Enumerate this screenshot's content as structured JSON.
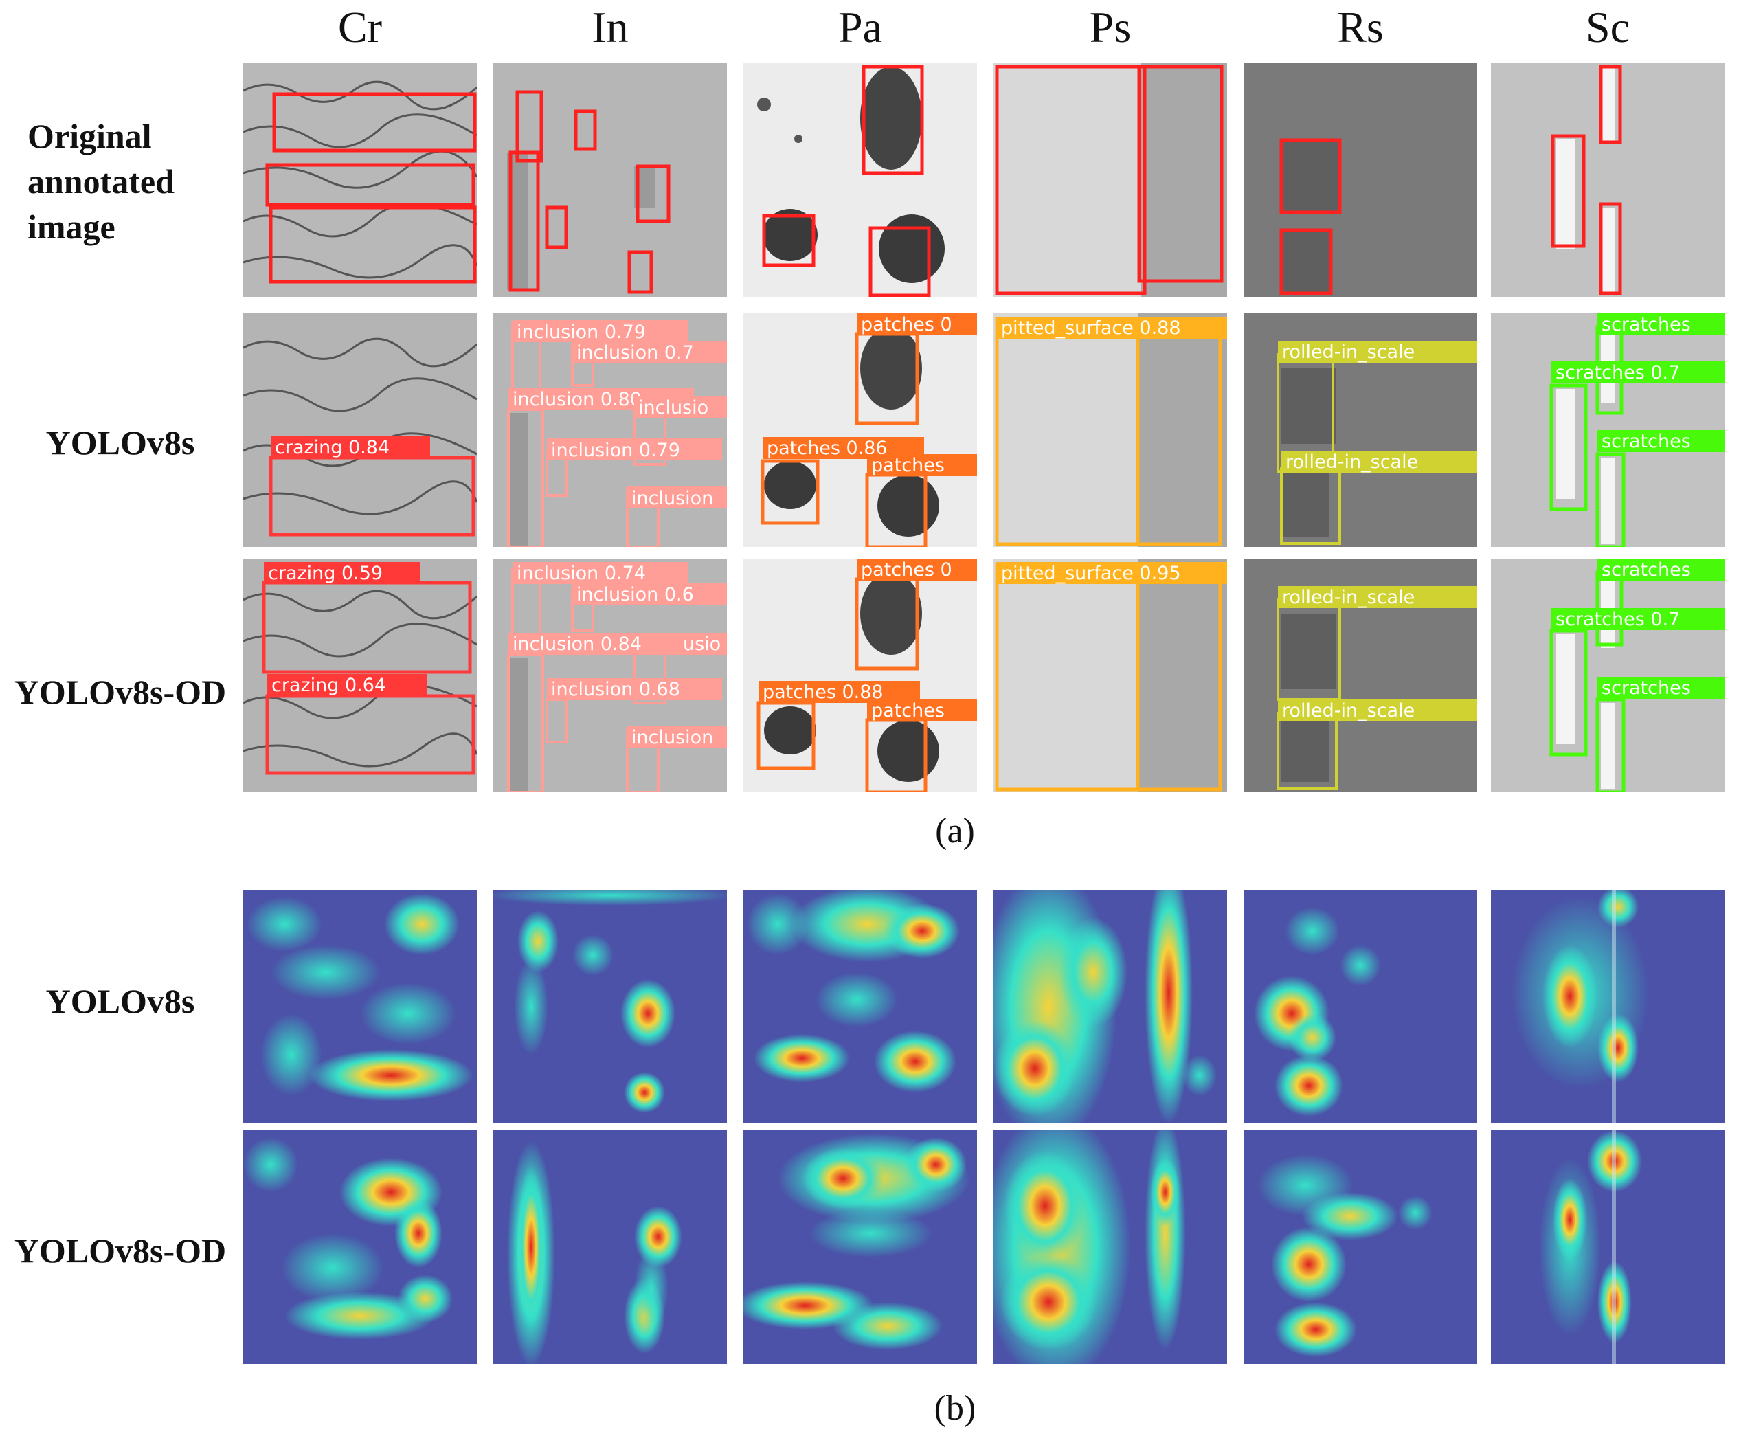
{
  "columns": [
    "Cr",
    "In",
    "Pa",
    "Ps",
    "Rs",
    "Sc"
  ],
  "rows_a": [
    "Original annotated image",
    "YOLOv8s",
    "YOLOv8s-OD"
  ],
  "rows_b": [
    "YOLOv8s",
    "YOLOv8s-OD"
  ],
  "captions": {
    "a": "(a)",
    "b": "(b)"
  },
  "class_colors": {
    "crazing": "#ff3838",
    "inclusion": "#ff9d97",
    "patches": "#ff701f",
    "pitted_surface": "#ffb21d",
    "rolled-in_scale": "#cfd231",
    "scratches": "#48f90a"
  },
  "detections": {
    "yolov8s": {
      "Cr": [
        "crazing 0.84"
      ],
      "In": [
        "inclusion 0.79",
        "inclusion 0.7",
        "inclusion 0.80",
        "inclusio",
        "inclusion 0.79",
        "inclusion"
      ],
      "Pa": [
        "patches 0",
        "patches 0.86",
        "patches"
      ],
      "Ps": [
        "pitted_surface 0.88"
      ],
      "Rs": [
        "rolled-in_scale",
        "rolled-in_scale"
      ],
      "Sc": [
        "scratches",
        "scratches 0.7",
        "scratches"
      ]
    },
    "yolov8s_od": {
      "Cr": [
        "crazing 0.59",
        "crazing 0.64"
      ],
      "In": [
        "inclusion 0.74",
        "inclusion 0.6",
        "inclusion 0.84",
        "usio",
        "inclusion 0.68",
        "inclusion"
      ],
      "Pa": [
        "patches 0",
        "patches 0.88",
        "patches"
      ],
      "Ps": [
        "pitted_surface 0.95"
      ],
      "Rs": [
        "rolled-in_scale",
        "rolled-in_scale"
      ],
      "Sc": [
        "scratches",
        "scratches 0.7",
        "scratches"
      ]
    }
  }
}
